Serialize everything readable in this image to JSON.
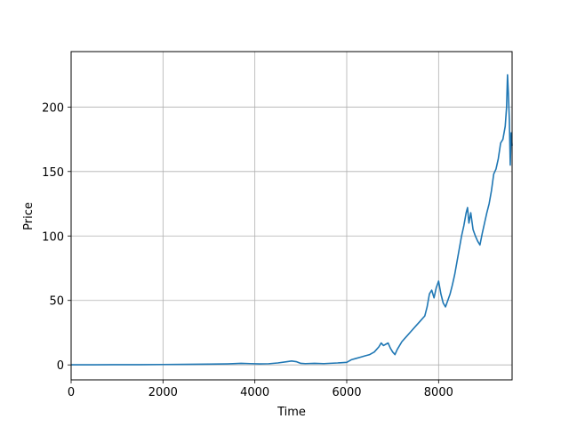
{
  "chart_data": {
    "type": "line",
    "xlabel": "Time",
    "ylabel": "Price",
    "xlim": [
      0,
      9600
    ],
    "ylim": [
      -11.6,
      243
    ],
    "grid": true,
    "line_color": "#1f77b4",
    "x_ticks": [
      0,
      2000,
      4000,
      6000,
      8000
    ],
    "y_ticks": [
      0,
      50,
      100,
      150,
      200
    ],
    "x_tick_labels": [
      "0",
      "2000",
      "4000",
      "6000",
      "8000"
    ],
    "y_tick_labels": [
      "0",
      "50",
      "100",
      "150",
      "200"
    ],
    "series": [
      {
        "x": [
          0,
          500,
          1000,
          1500,
          2000,
          2500,
          3000,
          3400,
          3700,
          3900,
          4100,
          4300,
          4500,
          4700,
          4800,
          4900,
          5000,
          5100,
          5300,
          5500,
          5800,
          6000,
          6100,
          6200,
          6300,
          6400,
          6500,
          6600,
          6700,
          6750,
          6800,
          6850,
          6900,
          6950,
          7000,
          7050,
          7100,
          7200,
          7300,
          7400,
          7500,
          7600,
          7700,
          7750,
          7800,
          7850,
          7900,
          7950,
          8000,
          8050,
          8100,
          8150,
          8200,
          8250,
          8300,
          8350,
          8400,
          8450,
          8500,
          8550,
          8600,
          8630,
          8660,
          8700,
          8750,
          8800,
          8850,
          8900,
          8950,
          9000,
          9050,
          9100,
          9150,
          9200,
          9250,
          9300,
          9350,
          9400,
          9450,
          9480,
          9500,
          9520,
          9540,
          9560,
          9580,
          9600
        ],
        "y": [
          0.1,
          0.1,
          0.15,
          0.2,
          0.3,
          0.4,
          0.6,
          0.8,
          1.2,
          1.0,
          0.8,
          0.9,
          1.5,
          2.5,
          3.0,
          2.5,
          1.2,
          1.0,
          1.2,
          1.0,
          1.5,
          2.0,
          4.0,
          5.0,
          6.0,
          7.0,
          8.0,
          10.0,
          14.0,
          17.0,
          15.0,
          16.0,
          17.0,
          13.0,
          10.0,
          8.0,
          12.0,
          18.0,
          22.0,
          26.0,
          30.0,
          34.0,
          38.0,
          45.0,
          55.0,
          58.0,
          52.0,
          60.0,
          65.0,
          55.0,
          48.0,
          45.0,
          50.0,
          55.0,
          62.0,
          70.0,
          80.0,
          90.0,
          100.0,
          108.0,
          118.0,
          122.0,
          110.0,
          118.0,
          105.0,
          100.0,
          96.0,
          93.0,
          102.0,
          110.0,
          118.0,
          125.0,
          135.0,
          148.0,
          152.0,
          160.0,
          172.0,
          175.0,
          185.0,
          200.0,
          225.0,
          210.0,
          190.0,
          155.0,
          180.0,
          170.0
        ]
      }
    ]
  }
}
